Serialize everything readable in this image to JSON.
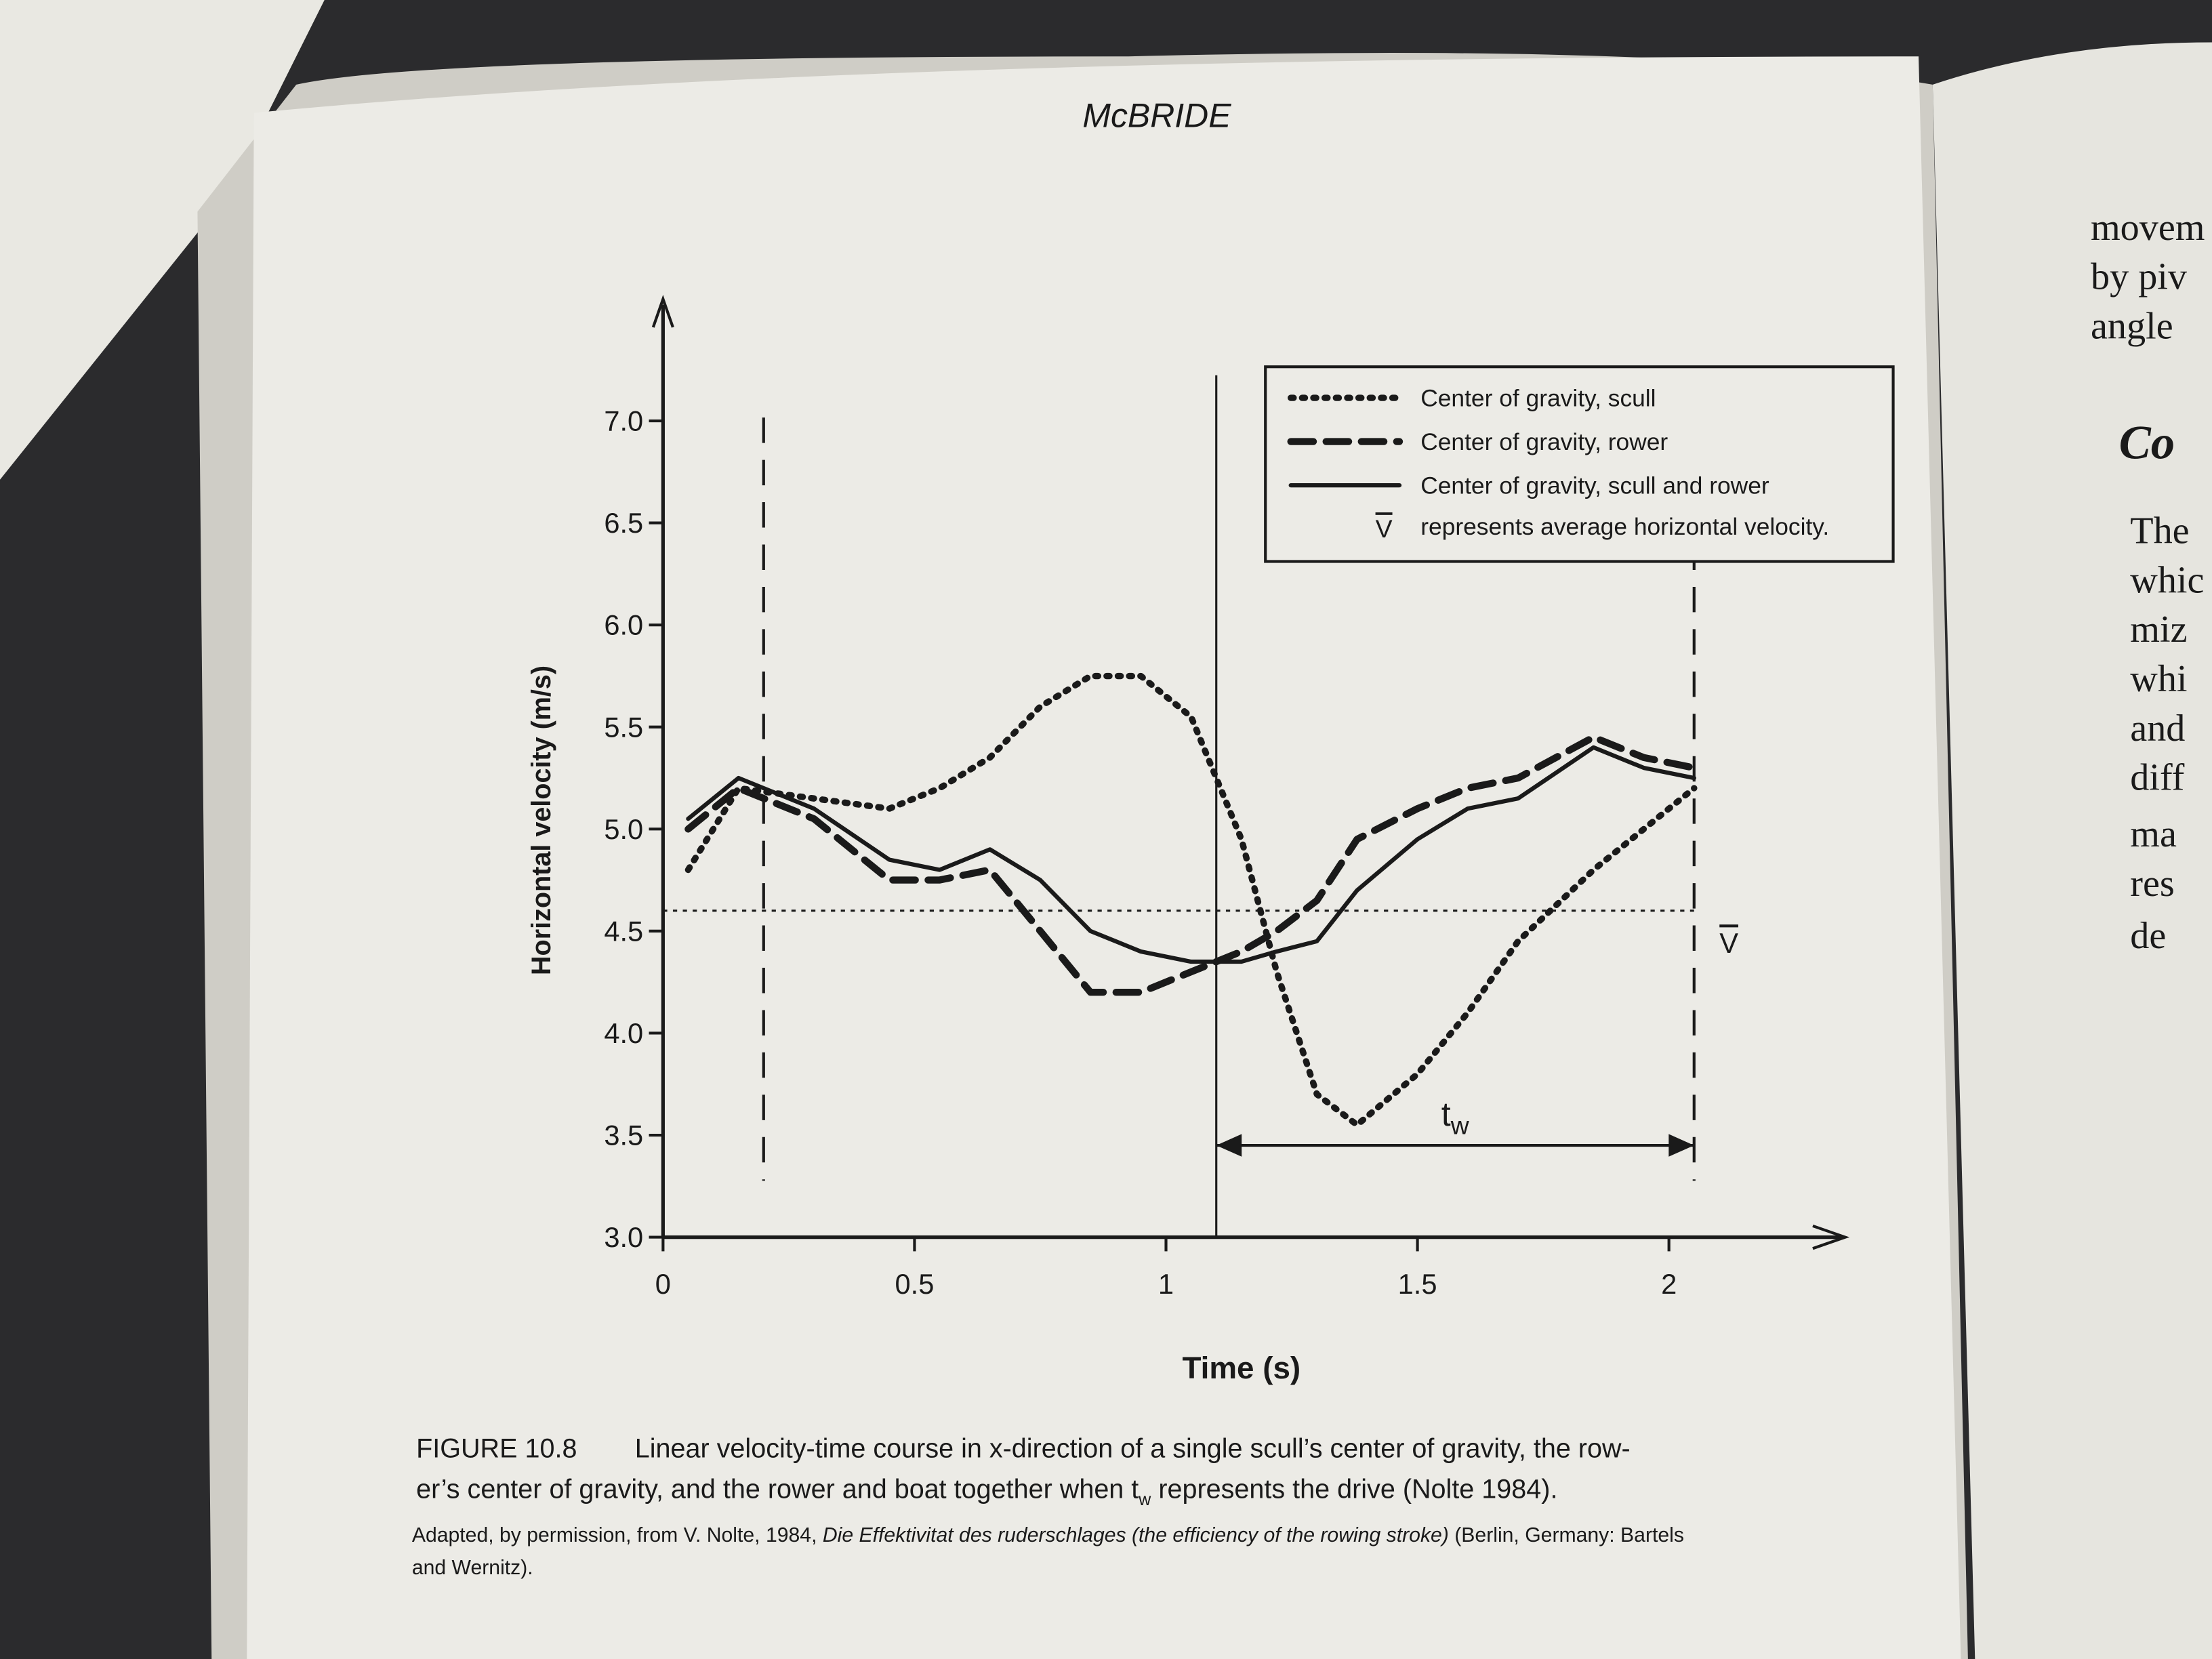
{
  "header": "McBRIDE",
  "chart_data": {
    "type": "line",
    "x_label": "Time (s)",
    "y_label": "Horizontal velocity (m/s)",
    "x": [
      0.05,
      0.15,
      0.3,
      0.45,
      0.55,
      0.65,
      0.75,
      0.85,
      0.95,
      1.05,
      1.15,
      1.22,
      1.3,
      1.38,
      1.5,
      1.6,
      1.7,
      1.85,
      1.95,
      2.05
    ],
    "series": [
      {
        "name": "Center of gravity, scull",
        "color": "#1a1a1a",
        "style": "dotted",
        "values": [
          4.8,
          5.2,
          5.15,
          5.1,
          5.2,
          5.35,
          5.6,
          5.75,
          5.75,
          5.55,
          4.95,
          4.3,
          3.7,
          3.55,
          3.8,
          4.1,
          4.45,
          4.8,
          5.0,
          5.2
        ]
      },
      {
        "name": "Center of gravity, rower",
        "color": "#1a1a1a",
        "style": "dashed",
        "values": [
          5.0,
          5.2,
          5.05,
          4.75,
          4.75,
          4.8,
          4.5,
          4.2,
          4.2,
          4.3,
          4.4,
          4.5,
          4.65,
          4.95,
          5.1,
          5.2,
          5.25,
          5.45,
          5.35,
          5.3
        ]
      },
      {
        "name": "Center of gravity, scull and rower",
        "color": "#1a1a1a",
        "style": "solid",
        "values": [
          5.05,
          5.25,
          5.1,
          4.85,
          4.8,
          4.9,
          4.75,
          4.5,
          4.4,
          4.35,
          4.35,
          4.4,
          4.45,
          4.7,
          4.95,
          5.1,
          5.15,
          5.4,
          5.3,
          5.25
        ]
      }
    ],
    "xlim": [
      0,
      2.3
    ],
    "ylim": [
      3,
      7.5
    ],
    "xticks": [
      0,
      0.5,
      1,
      1.5,
      2
    ],
    "yticks": [
      {
        "value": 3,
        "label": "3.0"
      },
      {
        "value": 3.5,
        "label": "3.5"
      },
      {
        "value": 4,
        "label": "4.0"
      },
      {
        "value": 4.5,
        "label": "4.5"
      },
      {
        "value": 5,
        "label": "5.0"
      },
      {
        "value": 5.5,
        "label": "5.5"
      },
      {
        "value": 6,
        "label": "6.0"
      },
      {
        "value": 6.5,
        "label": "6.5"
      },
      {
        "value": 7,
        "label": "7.0"
      }
    ],
    "average_value": 4.6,
    "average_symbol": "V",
    "average_legend": "represents average horizontal velocity.",
    "drive_start": 1.1,
    "drive_end": 2.05,
    "stroke_lines": [
      0.2,
      2.05
    ],
    "drive_label": "t",
    "drive_label_sub": "w"
  },
  "caption": {
    "figure": "FIGURE 10.8",
    "line1": "Linear velocity-time course in x-direction of a single scull’s center of gravity, the row-",
    "line2a": "er’s center of gravity, and the rower and boat together when t",
    "line2sub": "w",
    "line2b": " represents the drive (Nolte 1984).",
    "source1a": "Adapted, by permission, from V. Nolte, 1984, ",
    "source1b": "Die Effektivitat des ruderschlages (the efficiency of the rowing stroke)",
    "source1c": " (Berlin, Germany: Bartels",
    "source2": "and Wernitz)."
  },
  "right_page": [
    "movem",
    "by piv",
    "angle",
    "Co",
    "The",
    "whic",
    "miz",
    "whi",
    "and",
    "diff",
    "ma",
    "res",
    "de"
  ]
}
